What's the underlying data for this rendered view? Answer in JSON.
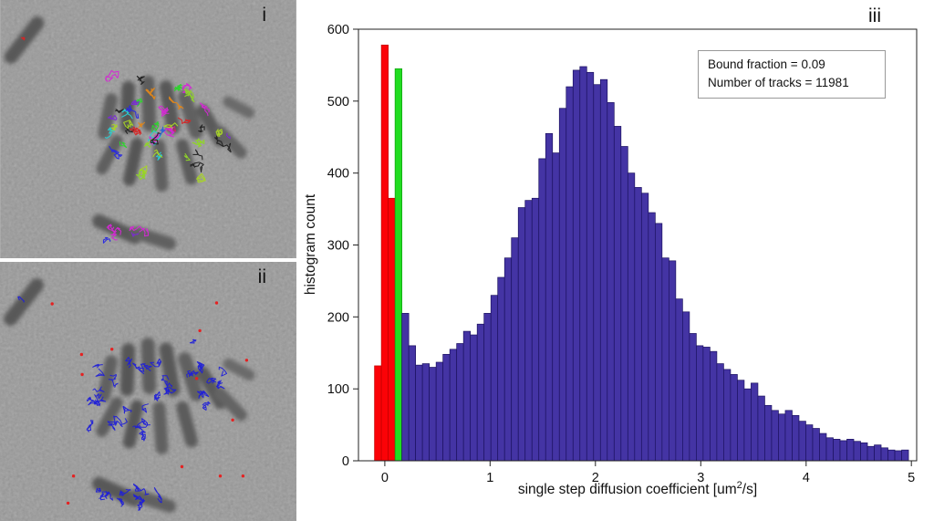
{
  "panels": {
    "i": {
      "label": "i"
    },
    "ii": {
      "label": "ii"
    },
    "iii": {
      "label": "iii"
    }
  },
  "chart_data": {
    "type": "bar",
    "title": "",
    "xlabel_prefix": "single step diffusion coefficient [um",
    "xlabel_sup": "2",
    "xlabel_suffix": "/s]",
    "ylabel": "histogram count",
    "legend_lines": [
      "Bound fraction = 0.09",
      "Number of tracks = 11981"
    ],
    "xlim": [
      -0.25,
      5.05
    ],
    "ylim": [
      0,
      600
    ],
    "xticks": [
      0,
      1,
      2,
      3,
      4,
      5
    ],
    "yticks": [
      0,
      100,
      200,
      300,
      400,
      500,
      600
    ],
    "grid": false,
    "legend_position": "top-right",
    "bin_width": 0.065,
    "first_bin_left": -0.0975,
    "segments": [
      {
        "name": "bound-red",
        "color": "#fb0207",
        "edge": "#c00000",
        "counts": [
          132,
          578,
          365
        ]
      },
      {
        "name": "threshold-green",
        "color": "#21dd21",
        "edge": "#0f9f0f",
        "counts": [
          545
        ]
      },
      {
        "name": "mobile-blue",
        "color": "#4434a4",
        "edge": "#1c1260",
        "counts": [
          205,
          160,
          133,
          135,
          130,
          137,
          148,
          155,
          163,
          180,
          175,
          190,
          205,
          230,
          255,
          282,
          310,
          352,
          362,
          365,
          420,
          455,
          428,
          490,
          520,
          543,
          548,
          540,
          523,
          530,
          498,
          465,
          437,
          400,
          380,
          372,
          345,
          330,
          282,
          278,
          225,
          207,
          177,
          160,
          158,
          152,
          135,
          127,
          120,
          112,
          100,
          108,
          90,
          77,
          70,
          65,
          70,
          63,
          55,
          50,
          45,
          38,
          32,
          30,
          28,
          30,
          27,
          25,
          20,
          22,
          18,
          15,
          14,
          15
        ]
      }
    ]
  },
  "microscopy": {
    "background_gray": "#b2b2b2",
    "panel_i_track_colors": [
      "#d42727",
      "#2bd42b",
      "#2929e0",
      "#d429d4",
      "#29cfd4",
      "#8fd429",
      "#7b2bd4",
      "#222222",
      "#e08619",
      "#d42769",
      "#2965d4",
      "#a8d427"
    ],
    "panel_i_bottom_colors": [
      "#d429d4",
      "#2929e0",
      "#7b2bd4",
      "#d429d4"
    ],
    "panel_ii_track_color": "#1f1fd8",
    "panel_ii_dot_color": "#e42222"
  }
}
